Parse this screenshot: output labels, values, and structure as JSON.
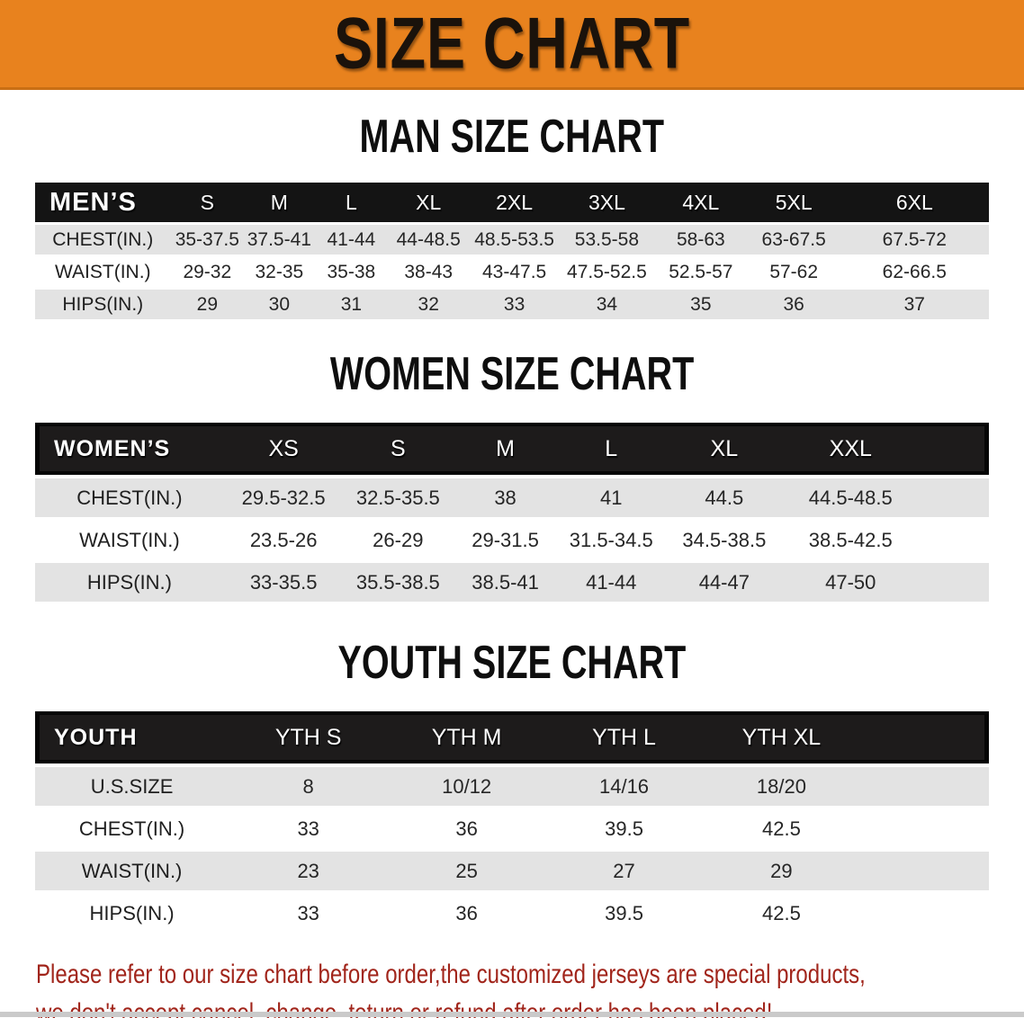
{
  "banner": {
    "title": "SIZE CHART"
  },
  "colors": {
    "banner_bg": "#E8821E",
    "banner_edge": "#C96F15",
    "header_bg": "#141414",
    "stripe": "#E3E3E3",
    "note_red": "#A1251B"
  },
  "sections": [
    {
      "id": "men",
      "title": "MAN SIZE CHART",
      "table": {
        "header": [
          "MEN’S",
          "S",
          "M",
          "L",
          "XL",
          "2XL",
          "3XL",
          "4XL",
          "5XL",
          "6XL"
        ],
        "rows": [
          [
            "CHEST(IN.)",
            "35-37.5",
            "37.5-41",
            "41-44",
            "44-48.5",
            "48.5-53.5",
            "53.5-58",
            "58-63",
            "63-67.5",
            "67.5-72"
          ],
          [
            "WAIST(IN.)",
            "29-32",
            "32-35",
            "35-38",
            "38-43",
            "43-47.5",
            "47.5-52.5",
            "52.5-57",
            "57-62",
            "62-66.5"
          ],
          [
            "HIPS(IN.)",
            "29",
            "30",
            "31",
            "32",
            "33",
            "34",
            "35",
            "36",
            "37"
          ]
        ]
      }
    },
    {
      "id": "women",
      "title": "WOMEN SIZE CHART",
      "table": {
        "header": [
          "WOMEN’S",
          "XS",
          "S",
          "M",
          "L",
          "XL",
          "XXL"
        ],
        "rows": [
          [
            "CHEST(IN.)",
            "29.5-32.5",
            "32.5-35.5",
            "38",
            "41",
            "44.5",
            "44.5-48.5"
          ],
          [
            "WAIST(IN.)",
            "23.5-26",
            "26-29",
            "29-31.5",
            "31.5-34.5",
            "34.5-38.5",
            "38.5-42.5"
          ],
          [
            "HIPS(IN.)",
            "33-35.5",
            "35.5-38.5",
            "38.5-41",
            "41-44",
            "44-47",
            "47-50"
          ]
        ]
      }
    },
    {
      "id": "youth",
      "title": "YOUTH SIZE CHART",
      "table": {
        "header": [
          "YOUTH",
          "YTH S",
          "YTH M",
          "YTH L",
          "YTH XL"
        ],
        "rows": [
          [
            "U.S.SIZE",
            "8",
            "10/12",
            "14/16",
            "18/20"
          ],
          [
            "CHEST(IN.)",
            "33",
            "36",
            "39.5",
            "42.5"
          ],
          [
            "WAIST(IN.)",
            "23",
            "25",
            "27",
            "29"
          ],
          [
            "HIPS(IN.)",
            "33",
            "36",
            "39.5",
            "42.5"
          ]
        ]
      }
    }
  ],
  "note": {
    "line1": "Please refer to our size chart before order,the customized jerseys are special products,",
    "line2": "we don't accept cancel, change, teturn or refund after order has been placed!"
  }
}
